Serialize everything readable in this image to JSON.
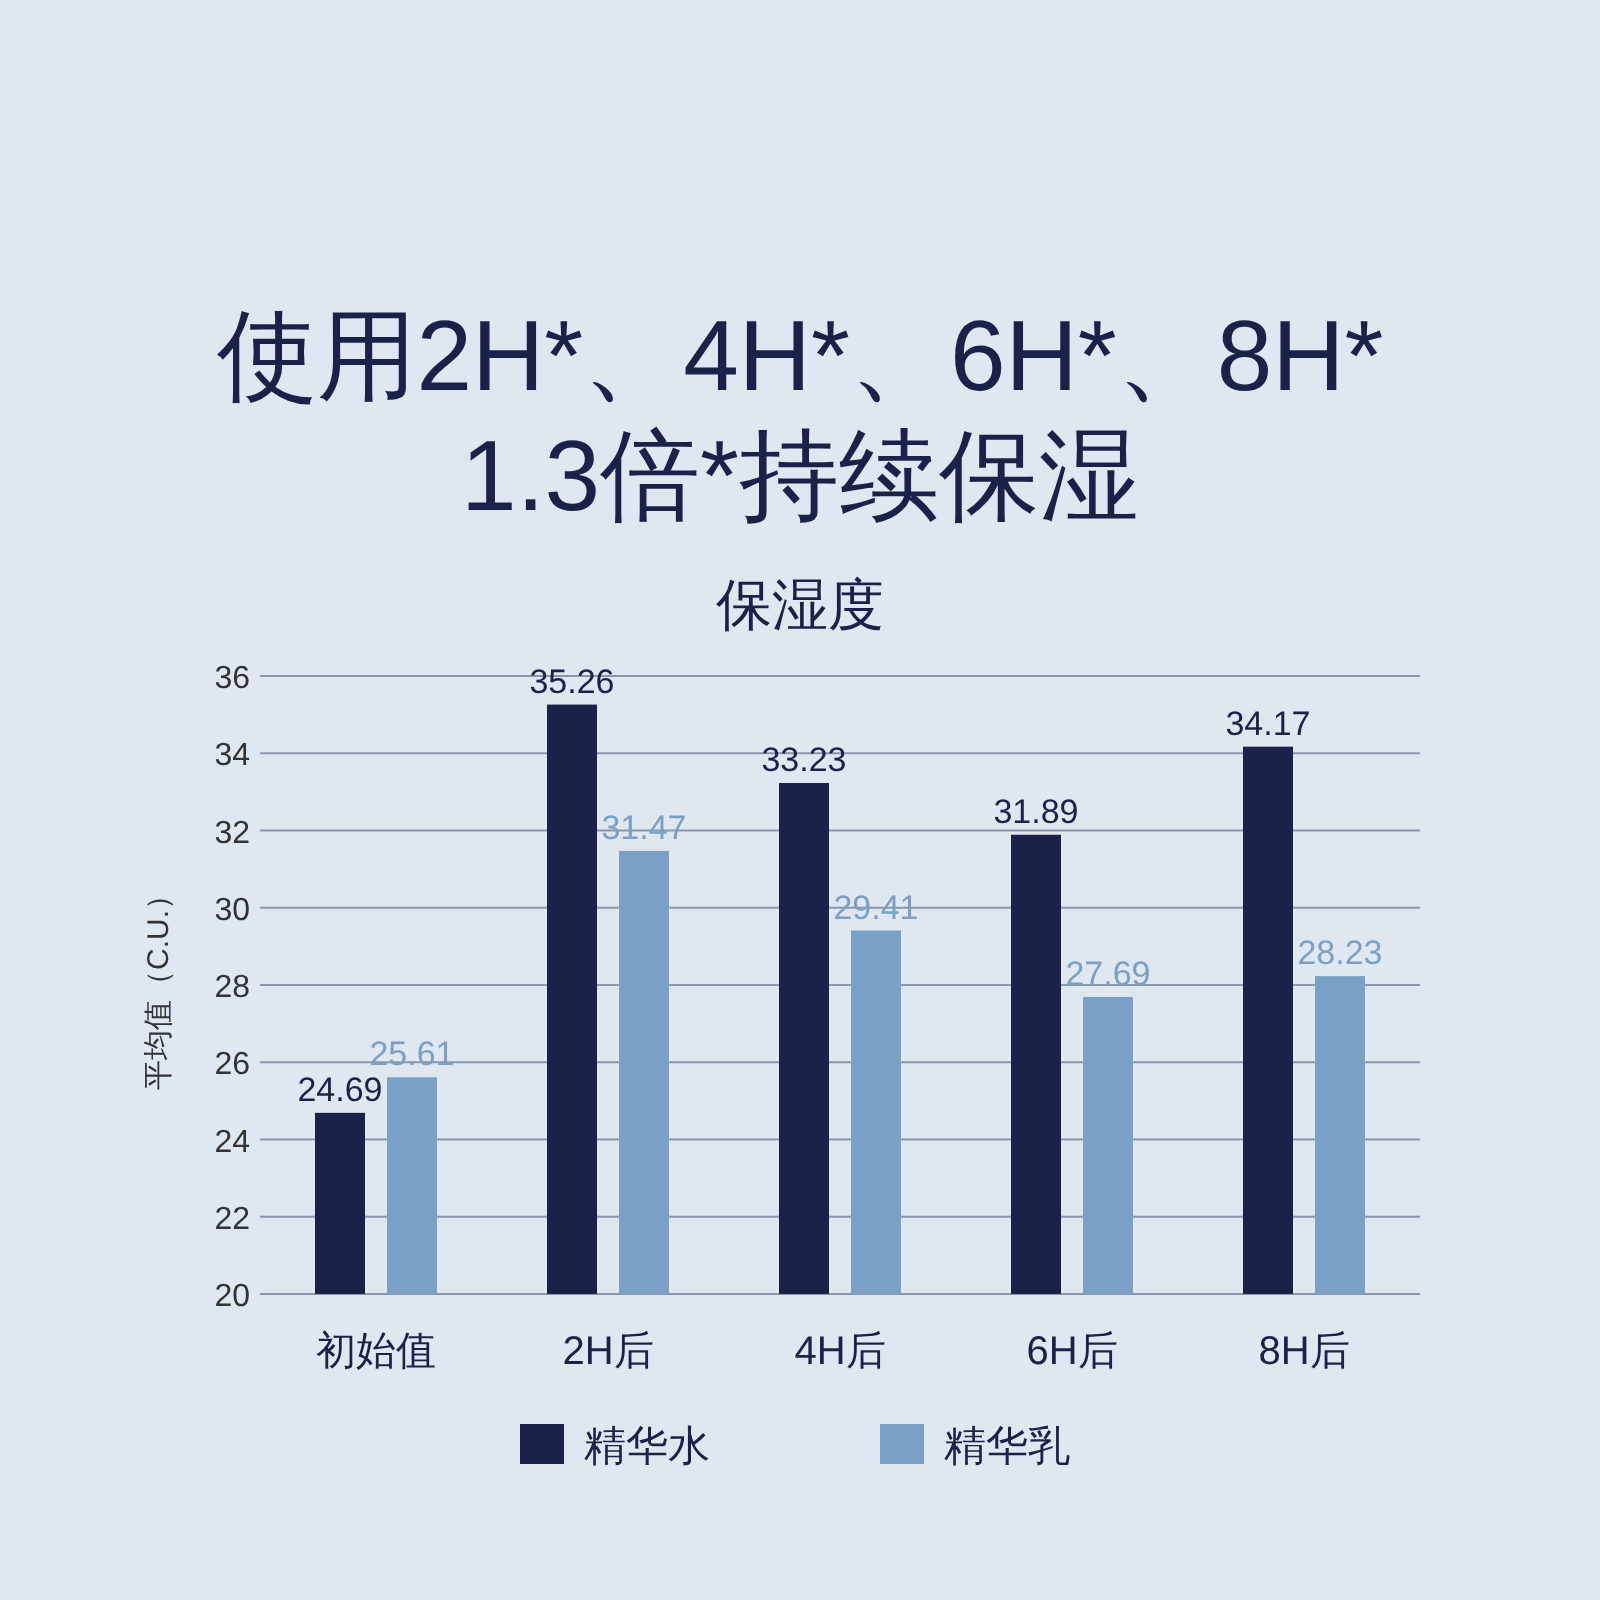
{
  "chart_data": {
    "type": "bar",
    "title": "使用2H*、4H*、6H*、8H*\n1.3倍*持续保湿",
    "subtitle": "保湿度",
    "ylabel": "平均值（C.U.）",
    "categories": [
      "初始值",
      "2H后",
      "4H后",
      "6H后",
      "8H后"
    ],
    "series": [
      {
        "name": "精华水",
        "color": "#1a2249",
        "values": [
          24.69,
          35.26,
          33.23,
          31.89,
          34.17
        ]
      },
      {
        "name": "精华乳",
        "color": "#7aa0c5",
        "values": [
          25.61,
          31.47,
          29.41,
          27.69,
          28.23
        ]
      }
    ],
    "ylim": [
      20,
      36
    ],
    "yticks": [
      20,
      22,
      24,
      26,
      28,
      30,
      32,
      34,
      36
    ],
    "grid": "y",
    "legend": "bottom",
    "data_labels": true
  }
}
